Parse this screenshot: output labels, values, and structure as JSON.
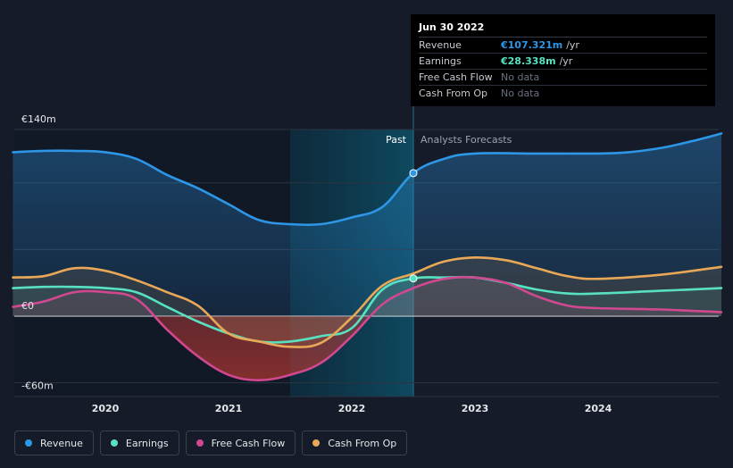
{
  "chart_data": {
    "type": "area",
    "y_unit": "€m",
    "y_range": [
      -60,
      140
    ],
    "y_ticks": [
      {
        "value": 140,
        "label": "€140m"
      },
      {
        "value": 0,
        "label": "€0"
      },
      {
        "value": -60,
        "label": "-€60m"
      }
    ],
    "x_range": [
      2019.25,
      2025.0
    ],
    "x_ticks": [
      {
        "value": 2020,
        "label": "2020"
      },
      {
        "value": 2021,
        "label": "2021"
      },
      {
        "value": 2022,
        "label": "2022"
      },
      {
        "value": 2023,
        "label": "2023"
      },
      {
        "value": 2024,
        "label": "2024"
      }
    ],
    "divider_x": 2022.5,
    "highlight_start_x": 2021.5,
    "past_label": "Past",
    "forecast_label": "Analysts Forecasts",
    "series": [
      {
        "name": "Revenue",
        "color": "#2e96e6",
        "points": [
          [
            2019.25,
            123
          ],
          [
            2019.5,
            124
          ],
          [
            2019.75,
            124
          ],
          [
            2020.0,
            123
          ],
          [
            2020.25,
            118
          ],
          [
            2020.5,
            106
          ],
          [
            2020.75,
            96
          ],
          [
            2021.0,
            84
          ],
          [
            2021.25,
            72
          ],
          [
            2021.5,
            69
          ],
          [
            2021.75,
            69
          ],
          [
            2022.0,
            74
          ],
          [
            2022.25,
            82
          ],
          [
            2022.5,
            107.3
          ],
          [
            2022.75,
            118
          ],
          [
            2023.0,
            122
          ],
          [
            2023.5,
            122
          ],
          [
            2024.0,
            122
          ],
          [
            2024.25,
            123
          ],
          [
            2024.5,
            126
          ],
          [
            2024.75,
            131
          ],
          [
            2025.0,
            137
          ]
        ]
      },
      {
        "name": "Earnings",
        "color": "#58e1c1",
        "points": [
          [
            2019.25,
            21
          ],
          [
            2019.5,
            22
          ],
          [
            2019.75,
            22
          ],
          [
            2020.0,
            21
          ],
          [
            2020.25,
            18
          ],
          [
            2020.5,
            7
          ],
          [
            2020.75,
            -4
          ],
          [
            2021.0,
            -13
          ],
          [
            2021.25,
            -19
          ],
          [
            2021.5,
            -19
          ],
          [
            2021.75,
            -15
          ],
          [
            2022.0,
            -9
          ],
          [
            2022.25,
            20
          ],
          [
            2022.5,
            28.3
          ],
          [
            2022.75,
            29
          ],
          [
            2023.0,
            29
          ],
          [
            2023.25,
            25
          ],
          [
            2023.5,
            20
          ],
          [
            2023.75,
            17
          ],
          [
            2024.0,
            17
          ],
          [
            2024.5,
            19
          ],
          [
            2025.0,
            21
          ]
        ]
      },
      {
        "name": "Free Cash Flow",
        "color": "#d0488f",
        "points": [
          [
            2019.25,
            7
          ],
          [
            2019.5,
            11
          ],
          [
            2019.75,
            18
          ],
          [
            2020.0,
            18
          ],
          [
            2020.25,
            13
          ],
          [
            2020.5,
            -10
          ],
          [
            2020.75,
            -30
          ],
          [
            2021.0,
            -44
          ],
          [
            2021.25,
            -48
          ],
          [
            2021.5,
            -44
          ],
          [
            2021.75,
            -35
          ],
          [
            2022.0,
            -15
          ],
          [
            2022.25,
            9
          ],
          [
            2022.5,
            21
          ],
          [
            2022.75,
            28
          ],
          [
            2023.0,
            29
          ],
          [
            2023.25,
            25
          ],
          [
            2023.5,
            15
          ],
          [
            2023.75,
            8
          ],
          [
            2024.0,
            6
          ],
          [
            2024.5,
            5
          ],
          [
            2025.0,
            3
          ]
        ]
      },
      {
        "name": "Cash From Op",
        "color": "#e8a857",
        "points": [
          [
            2019.25,
            29
          ],
          [
            2019.5,
            30
          ],
          [
            2019.75,
            36
          ],
          [
            2020.0,
            34
          ],
          [
            2020.25,
            27
          ],
          [
            2020.5,
            18
          ],
          [
            2020.75,
            8
          ],
          [
            2021.0,
            -13
          ],
          [
            2021.25,
            -19
          ],
          [
            2021.5,
            -23
          ],
          [
            2021.75,
            -20
          ],
          [
            2022.0,
            -1
          ],
          [
            2022.25,
            23
          ],
          [
            2022.5,
            32
          ],
          [
            2022.75,
            41
          ],
          [
            2023.0,
            44
          ],
          [
            2023.25,
            42
          ],
          [
            2023.5,
            36
          ],
          [
            2023.75,
            30
          ],
          [
            2024.0,
            28
          ],
          [
            2024.5,
            31
          ],
          [
            2025.0,
            37
          ]
        ]
      }
    ],
    "highlight_points": [
      {
        "series": "Revenue",
        "x": 2022.5,
        "y": 107.3
      },
      {
        "series": "Earnings",
        "x": 2022.5,
        "y": 28.3
      }
    ]
  },
  "tooltip": {
    "date": "Jun 30 2022",
    "rows": [
      {
        "label": "Revenue",
        "value": "€107.321m",
        "unit": "/yr",
        "color": "#2e96e6"
      },
      {
        "label": "Earnings",
        "value": "€28.338m",
        "unit": "/yr",
        "color": "#58e1c1"
      },
      {
        "label": "Free Cash Flow",
        "nodata": "No data"
      },
      {
        "label": "Cash From Op",
        "nodata": "No data"
      }
    ]
  },
  "legend": [
    {
      "label": "Revenue",
      "color": "#2e96e6"
    },
    {
      "label": "Earnings",
      "color": "#58e1c1"
    },
    {
      "label": "Free Cash Flow",
      "color": "#d0488f"
    },
    {
      "label": "Cash From Op",
      "color": "#e8a857"
    }
  ]
}
